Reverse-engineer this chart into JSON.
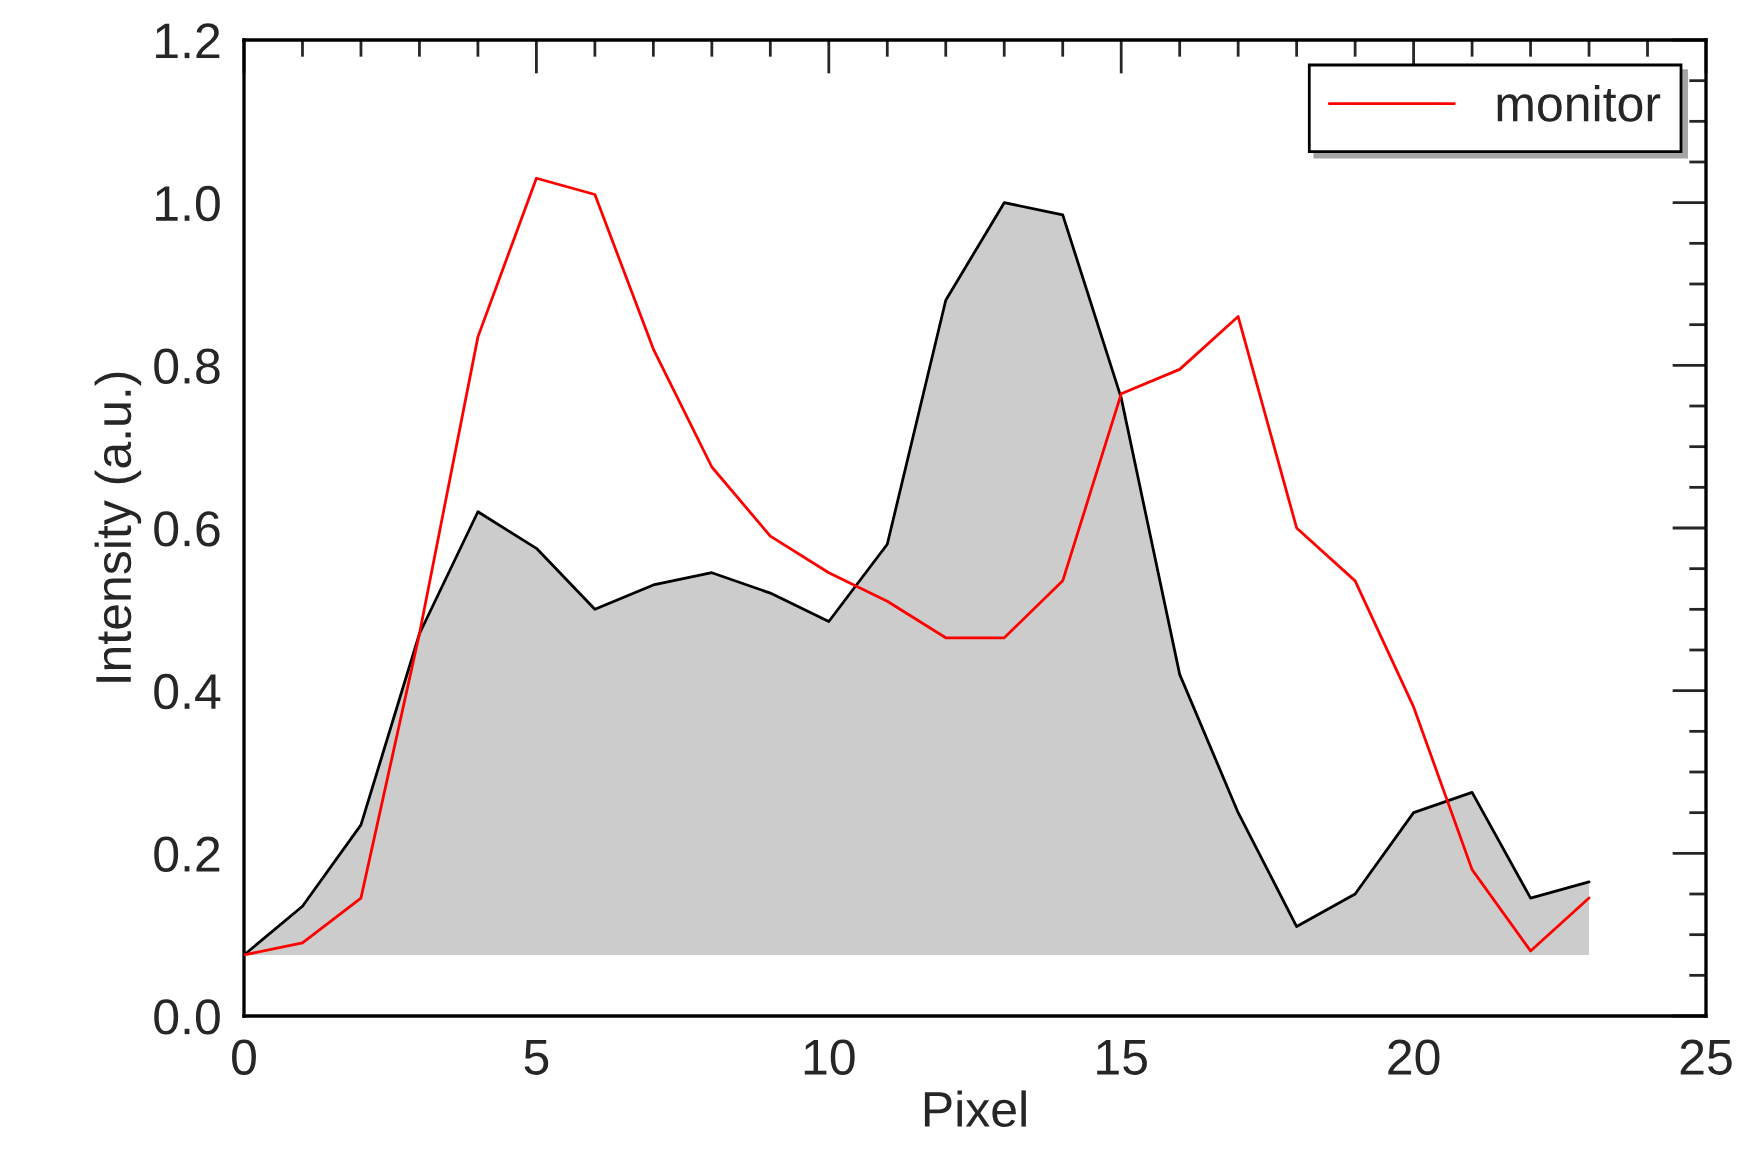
{
  "chart_data": {
    "type": "line",
    "xlabel": "Pixel",
    "ylabel": "Intensity (a.u.)",
    "x": [
      0,
      1,
      2,
      3,
      4,
      5,
      6,
      7,
      8,
      9,
      10,
      11,
      12,
      13,
      14,
      15,
      16,
      17,
      18,
      19,
      20,
      21,
      22,
      23
    ],
    "series": [
      {
        "type": "area",
        "color": "#cccccc",
        "values": [
          0.075,
          0.135,
          0.235,
          0.47,
          0.62,
          0.575,
          0.5,
          0.53,
          0.545,
          0.52,
          0.485,
          0.58,
          0.88,
          1.0,
          0.985,
          0.76,
          0.42,
          0.25,
          0.11,
          0.15,
          0.25,
          0.275,
          0.145,
          0.165
        ]
      },
      {
        "type": "line",
        "name": "monitor",
        "color": "#ff0000",
        "values": [
          0.075,
          0.09,
          0.145,
          0.47,
          0.835,
          1.03,
          1.01,
          0.82,
          0.675,
          0.59,
          0.545,
          0.51,
          0.465,
          0.465,
          0.535,
          0.765,
          0.795,
          0.86,
          0.6,
          0.535,
          0.38,
          0.18,
          0.08,
          0.145
        ]
      }
    ],
    "xlim": [
      0,
      25
    ],
    "xticks": [
      0,
      5,
      10,
      15,
      20,
      25
    ],
    "ylim": [
      0,
      1.2
    ],
    "yticks": [
      {
        "value": 0,
        "label": "0.0"
      },
      {
        "value": 0.2,
        "label": "0.2"
      },
      {
        "value": 0.4,
        "label": "0.4"
      },
      {
        "value": 0.6,
        "label": "0.6"
      },
      {
        "value": 0.8,
        "label": "0.8"
      },
      {
        "value": 1.0,
        "label": "1.0"
      },
      {
        "value": 1.2,
        "label": "1.2"
      }
    ],
    "grid": false,
    "legend": "top right"
  }
}
